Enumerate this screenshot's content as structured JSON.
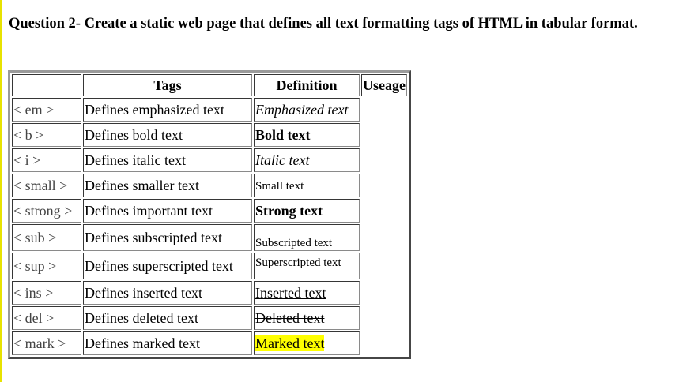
{
  "heading": "Question 2- Create a static web page that defines all text formatting tags of HTML in tabular format.",
  "table": {
    "headers": [
      "",
      "Tags",
      "Definition",
      "Useage"
    ],
    "rows": [
      {
        "tag": "< em >",
        "description": "Defines emphasized text",
        "example": "Emphasized text",
        "style": "em"
      },
      {
        "tag": "< b >",
        "description": "Defines bold text",
        "example": "Bold text",
        "style": "b"
      },
      {
        "tag": "< i >",
        "description": "Defines italic text",
        "example": "Italic text",
        "style": "i"
      },
      {
        "tag": "< small >",
        "description": "Defines smaller text",
        "example": "Small text",
        "style": "small"
      },
      {
        "tag": "< strong >",
        "description": "Defines important text",
        "example": "Strong text",
        "style": "strong"
      },
      {
        "tag": "< sub >",
        "description": "Defines subscripted text",
        "example": "Subscripted text",
        "style": "sub"
      },
      {
        "tag": "< sup >",
        "description": "Defines superscripted text",
        "example": "Superscripted text",
        "style": "sup"
      },
      {
        "tag": "< ins >",
        "description": "Defines inserted text",
        "example": "Inserted text",
        "style": "ins"
      },
      {
        "tag": "< del >",
        "description": "Defines deleted text",
        "example": "Deleted text",
        "style": "del"
      },
      {
        "tag": "< mark >",
        "description": "Defines marked text",
        "example": "Marked text",
        "style": "mark"
      }
    ]
  },
  "colors": {
    "left_rule": "#e7e200",
    "mark_highlight": "#ffff00"
  }
}
